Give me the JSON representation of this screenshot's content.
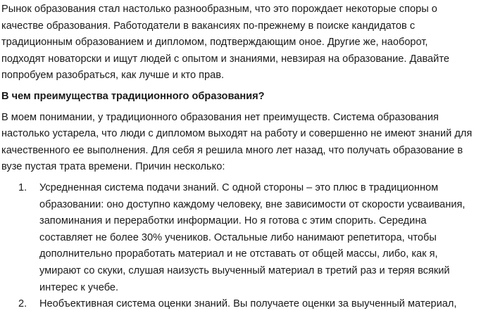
{
  "document": {
    "intro_lines": [
      "Рынок образования стал настолько разнообразным, что это порождает некоторые споры о",
      "качестве образования. Работодатели в вакансиях по-прежнему в поиске кандидатов с",
      "традиционным образованием и дипломом, подтверждающим оное. Другие же, наоборот,",
      "подходят новаторски и ищут людей с опытом и знаниями, невзирая на образование. Давайте",
      "попробуем разобраться, как лучше и кто прав."
    ],
    "heading": "В чем преимущества традиционного образования?",
    "para2_lines": [
      "В моем понимании, у традиционного образования нет преимуществ. Система образования",
      "настолько устарела, что люди с дипломом выходят на работу и совершенно не имеют знаний для",
      "качественного ее выполнения. Для себя я решила много лет назад, что получать образование в",
      "вузе пустая трата времени. Причин несколько:"
    ],
    "list": [
      {
        "number": "1.",
        "lines": [
          "Усредненная система подачи знаний. С одной стороны – это плюс в традиционном",
          "образовании: оно доступно каждому человеку, вне зависимости от скорости усваивания,",
          "запоминания и переработки информации. Но я готова с этим спорить. Середина",
          "составляет не более 30% учеников. Остальные либо нанимают репетитора, чтобы",
          "дополнительно проработать материал и не отставать от общей массы, либо, как я,",
          "умирают со скуки, слушая наизусть выученный материал в третий раз и теряя всякий",
          "интерес к учебе."
        ]
      },
      {
        "number": "2.",
        "lines": [
          "Необъективная система оценки знаний. Вы получаете оценки за выученный материал,"
        ]
      }
    ]
  }
}
